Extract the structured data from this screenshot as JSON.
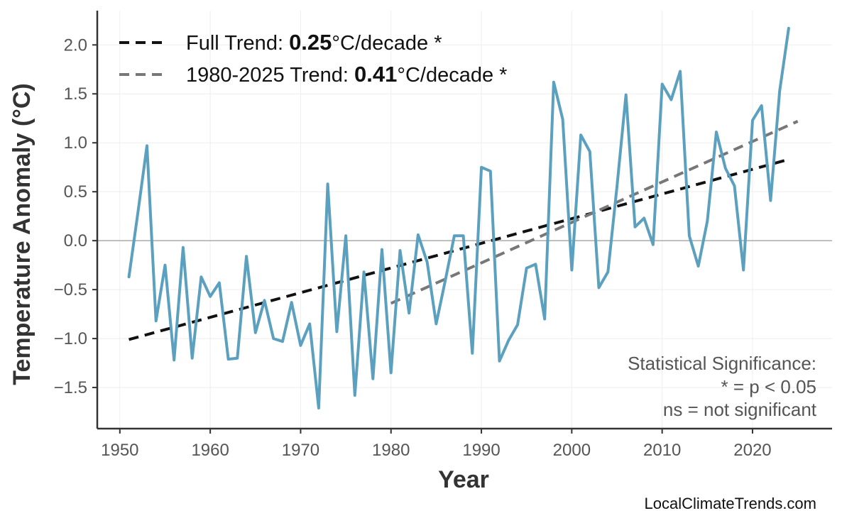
{
  "chart_data": {
    "type": "line",
    "title": "",
    "xlabel": "Year",
    "ylabel": "Temperature Anomaly (°C)",
    "xlim": [
      1947.5,
      2028.8
    ],
    "ylim": [
      -1.92,
      2.35
    ],
    "xticks": [
      1950,
      1960,
      1970,
      1980,
      1990,
      2000,
      2010,
      2020
    ],
    "xtick_labels": [
      "1950",
      "1960",
      "1970",
      "1980",
      "1990",
      "2000",
      "2010",
      "2020"
    ],
    "yticks": [
      2.0,
      1.5,
      1.0,
      0.5,
      0.0,
      -0.5,
      -1.0,
      -1.5
    ],
    "ytick_labels": [
      "2.0",
      "1.5",
      "1.0",
      "0.5",
      "0.0",
      "−0.5",
      "−1.0",
      "−1.5"
    ],
    "grid": true,
    "zero_line": true,
    "legend_position": "top-left",
    "series": [
      {
        "color": "#5ba0bf",
        "x": [
          1951,
          1952,
          1953,
          1954,
          1955,
          1956,
          1957,
          1958,
          1959,
          1960,
          1961,
          1962,
          1963,
          1964,
          1965,
          1966,
          1967,
          1968,
          1969,
          1970,
          1971,
          1972,
          1973,
          1974,
          1975,
          1976,
          1977,
          1978,
          1979,
          1980,
          1981,
          1982,
          1983,
          1984,
          1985,
          1986,
          1987,
          1988,
          1989,
          1990,
          1991,
          1992,
          1993,
          1994,
          1995,
          1996,
          1997,
          1998,
          1999,
          2000,
          2001,
          2002,
          2003,
          2004,
          2005,
          2006,
          2007,
          2008,
          2009,
          2010,
          2011,
          2012,
          2013,
          2014,
          2015,
          2016,
          2017,
          2018,
          2019,
          2020,
          2021,
          2022,
          2023,
          2024
        ],
        "y": [
          -0.37,
          0.29,
          0.97,
          -0.82,
          -0.25,
          -1.22,
          -0.07,
          -1.2,
          -0.37,
          -0.57,
          -0.43,
          -1.21,
          -1.2,
          -0.16,
          -0.94,
          -0.61,
          -1.0,
          -1.03,
          -0.63,
          -1.07,
          -0.85,
          -1.71,
          0.58,
          -0.93,
          0.05,
          -1.58,
          -0.32,
          -1.41,
          -0.09,
          -1.35,
          -0.1,
          -0.74,
          0.06,
          -0.22,
          -0.85,
          -0.41,
          0.05,
          0.05,
          -1.15,
          0.75,
          0.71,
          -1.23,
          -1.02,
          -0.86,
          -0.28,
          -0.24,
          -0.8,
          1.62,
          1.24,
          -0.3,
          1.08,
          0.91,
          -0.48,
          -0.32,
          0.55,
          1.49,
          0.14,
          0.23,
          -0.04,
          1.6,
          1.44,
          1.73,
          0.05,
          -0.26,
          0.2,
          1.11,
          0.74,
          0.56,
          -0.3,
          1.23,
          1.38,
          0.41,
          1.53,
          2.17
        ]
      }
    ],
    "trends": [
      {
        "label_prefix": "Full Trend: ",
        "value": "0.25",
        "label_suffix": "°C/decade *",
        "color": "#111111",
        "x": [
          1951,
          2024
        ],
        "y": [
          -1.01,
          0.83
        ]
      },
      {
        "label_prefix": "1980-2025 Trend: ",
        "value": "0.41",
        "label_suffix": "°C/decade *",
        "color": "#777777",
        "x": [
          1980,
          2025
        ],
        "y": [
          -0.64,
          1.22
        ]
      }
    ],
    "annotations": {
      "significance": [
        "Statistical Significance:",
        "* = p < 0.05",
        "ns = not significant"
      ],
      "credit": "LocalClimateTrends.com"
    }
  }
}
